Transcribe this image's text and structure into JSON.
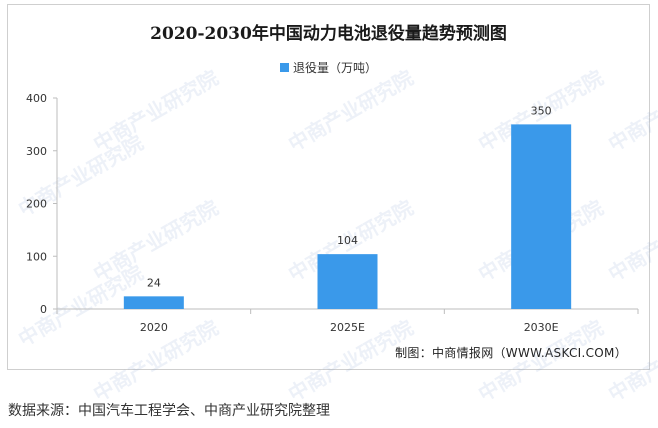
{
  "chart_data": {
    "type": "bar",
    "title": "2020-2030年中国动力电池退役量趋势预测图",
    "categories": [
      "2020",
      "2025E",
      "2030E"
    ],
    "series": [
      {
        "name": "退役量（万吨）",
        "values": [
          24,
          104,
          350
        ],
        "color": "#3a99ea"
      }
    ],
    "data_labels": [
      "24",
      "104",
      "350"
    ],
    "y_ticks": [
      "0",
      "100",
      "200",
      "300",
      "400"
    ],
    "ylim": [
      0,
      400
    ],
    "grid": false,
    "legend_position": "top-center"
  },
  "chart_footer": "制图：中商情报网（WWW.ASKCI.COM）",
  "source_note": "数据来源：中国汽车工程学会、中商产业研究院整理",
  "watermark_text": "中商产业研究院"
}
